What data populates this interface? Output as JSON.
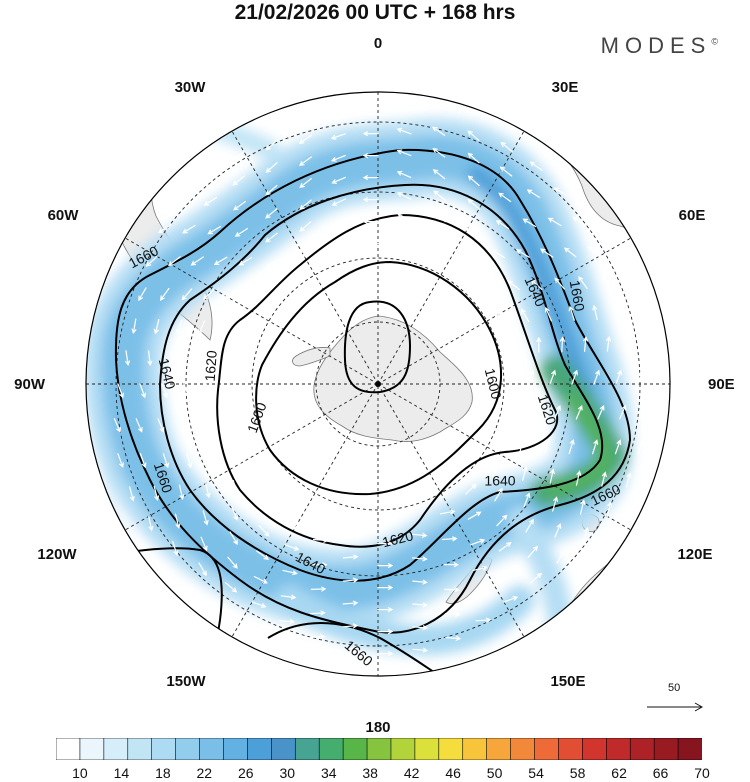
{
  "title": "21/02/2026  00 UTC  + 168 hrs",
  "brand": "MODES",
  "brand_mark": "©",
  "map": {
    "projection": "south-polar-stereographic",
    "longitude_labels": [
      "0",
      "30E",
      "60E",
      "90E",
      "120E",
      "150E",
      "180",
      "150W",
      "120W",
      "90W",
      "60W",
      "30W"
    ],
    "contour_labels": [
      "1600",
      "1600",
      "1620",
      "1620",
      "1620",
      "1640",
      "1640",
      "1640",
      "1640",
      "1660",
      "1660",
      "1660",
      "1660",
      "1660"
    ],
    "colors": {
      "land": "#ececec",
      "coastline": "#777777",
      "contour": "#000000",
      "grid": "#222222",
      "wind_arrow": "#ffffff",
      "jet_core": "#3cb05a"
    }
  },
  "reference_vector": {
    "value": "50"
  },
  "colorbar": {
    "tick_labels": [
      "10",
      "14",
      "18",
      "22",
      "26",
      "30",
      "34",
      "38",
      "42",
      "46",
      "50",
      "54",
      "58",
      "62",
      "66",
      "70"
    ],
    "colors": [
      "#ffffff",
      "#eaf6fc",
      "#d6eef9",
      "#c2e5f6",
      "#acdbf3",
      "#93cdee",
      "#7bbfe8",
      "#63b0e2",
      "#4d9fd9",
      "#4a93c8",
      "#47a392",
      "#45ad6d",
      "#58b547",
      "#86c440",
      "#b3d33a",
      "#dbe03a",
      "#f4dd3c",
      "#f7c43b",
      "#f6a63a",
      "#f2883a",
      "#ee6a38",
      "#e24e34",
      "#d2342e",
      "#c02a2a",
      "#ac2226",
      "#981b22",
      "#861520"
    ]
  }
}
